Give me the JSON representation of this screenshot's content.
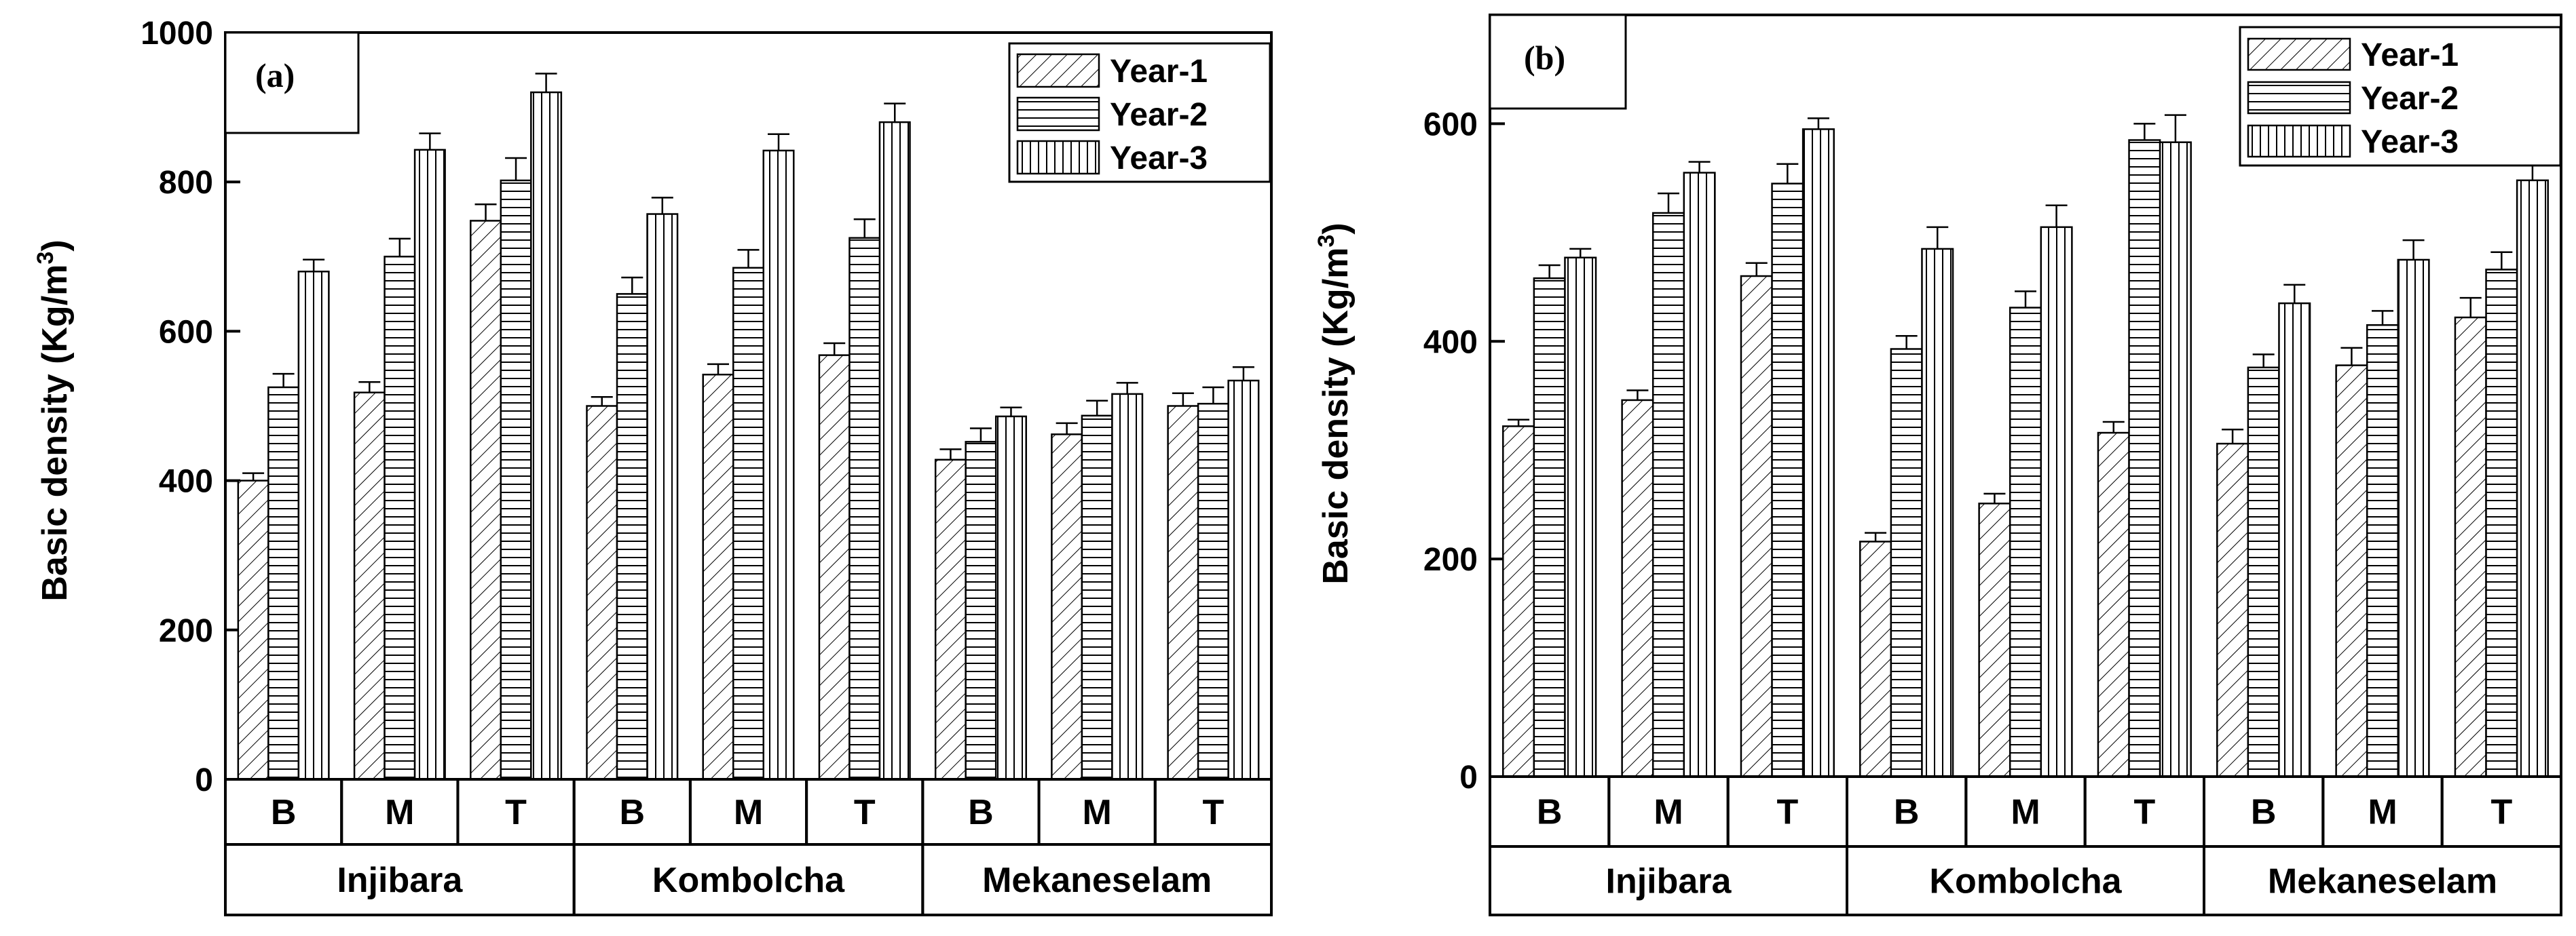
{
  "chart_data": [
    {
      "type": "bar",
      "panel_label": "(a)",
      "ylabel": "Basic density (Kg/m",
      "ylabel_sup": "3",
      "ylabel_close": ")",
      "ylim": [
        0,
        1000
      ],
      "yticks": [
        0,
        200,
        400,
        600,
        800,
        1000
      ],
      "ytick_labels": [
        "0",
        "200",
        "400",
        "600",
        "800",
        "1000"
      ],
      "groups": [
        "Injibara",
        "Kombolcha",
        "Mekaneselam"
      ],
      "categories": [
        "B",
        "M",
        "T",
        "B",
        "M",
        "T",
        "B",
        "M",
        "T"
      ],
      "legend": {
        "position": "top-right",
        "entries": [
          "Year-1",
          "Year-2",
          "Year-3"
        ]
      },
      "series": [
        {
          "name": "Year-1",
          "values": [
            400,
            518,
            748,
            500,
            542,
            568,
            428,
            462,
            500
          ],
          "errors": [
            10,
            14,
            22,
            12,
            14,
            16,
            14,
            15,
            17
          ]
        },
        {
          "name": "Year-2",
          "values": [
            525,
            700,
            802,
            650,
            685,
            725,
            452,
            487,
            503
          ],
          "errors": [
            18,
            24,
            30,
            22,
            24,
            25,
            18,
            20,
            22
          ]
        },
        {
          "name": "Year-3",
          "values": [
            680,
            843,
            920,
            757,
            842,
            880,
            486,
            516,
            534
          ],
          "errors": [
            16,
            22,
            25,
            22,
            22,
            25,
            12,
            15,
            18
          ]
        }
      ]
    },
    {
      "type": "bar",
      "panel_label": "(b)",
      "ylabel": "Basic density (Kg/m",
      "ylabel_sup": "3",
      "ylabel_close": ")",
      "ylim": [
        0,
        700
      ],
      "yticks": [
        0,
        200,
        400,
        600
      ],
      "ytick_labels": [
        "0",
        "200",
        "400",
        "600"
      ],
      "groups": [
        "Injibara",
        "Kombolcha",
        "Mekaneselam"
      ],
      "categories": [
        "B",
        "M",
        "T",
        "B",
        "M",
        "T",
        "B",
        "M",
        "T"
      ],
      "legend": {
        "position": "top-right",
        "entries": [
          "Year-1",
          "Year-2",
          "Year-3"
        ]
      },
      "series": [
        {
          "name": "Year-1",
          "values": [
            322,
            346,
            460,
            216,
            251,
            316,
            306,
            378,
            422
          ],
          "errors": [
            6,
            9,
            12,
            8,
            9,
            10,
            13,
            16,
            18
          ]
        },
        {
          "name": "Year-2",
          "values": [
            458,
            518,
            545,
            393,
            431,
            585,
            376,
            415,
            466
          ],
          "errors": [
            12,
            18,
            18,
            12,
            15,
            15,
            12,
            13,
            16
          ]
        },
        {
          "name": "Year-3",
          "values": [
            477,
            555,
            595,
            485,
            505,
            583,
            435,
            475,
            548
          ],
          "errors": [
            8,
            10,
            10,
            20,
            20,
            25,
            17,
            18,
            20
          ]
        }
      ]
    }
  ]
}
